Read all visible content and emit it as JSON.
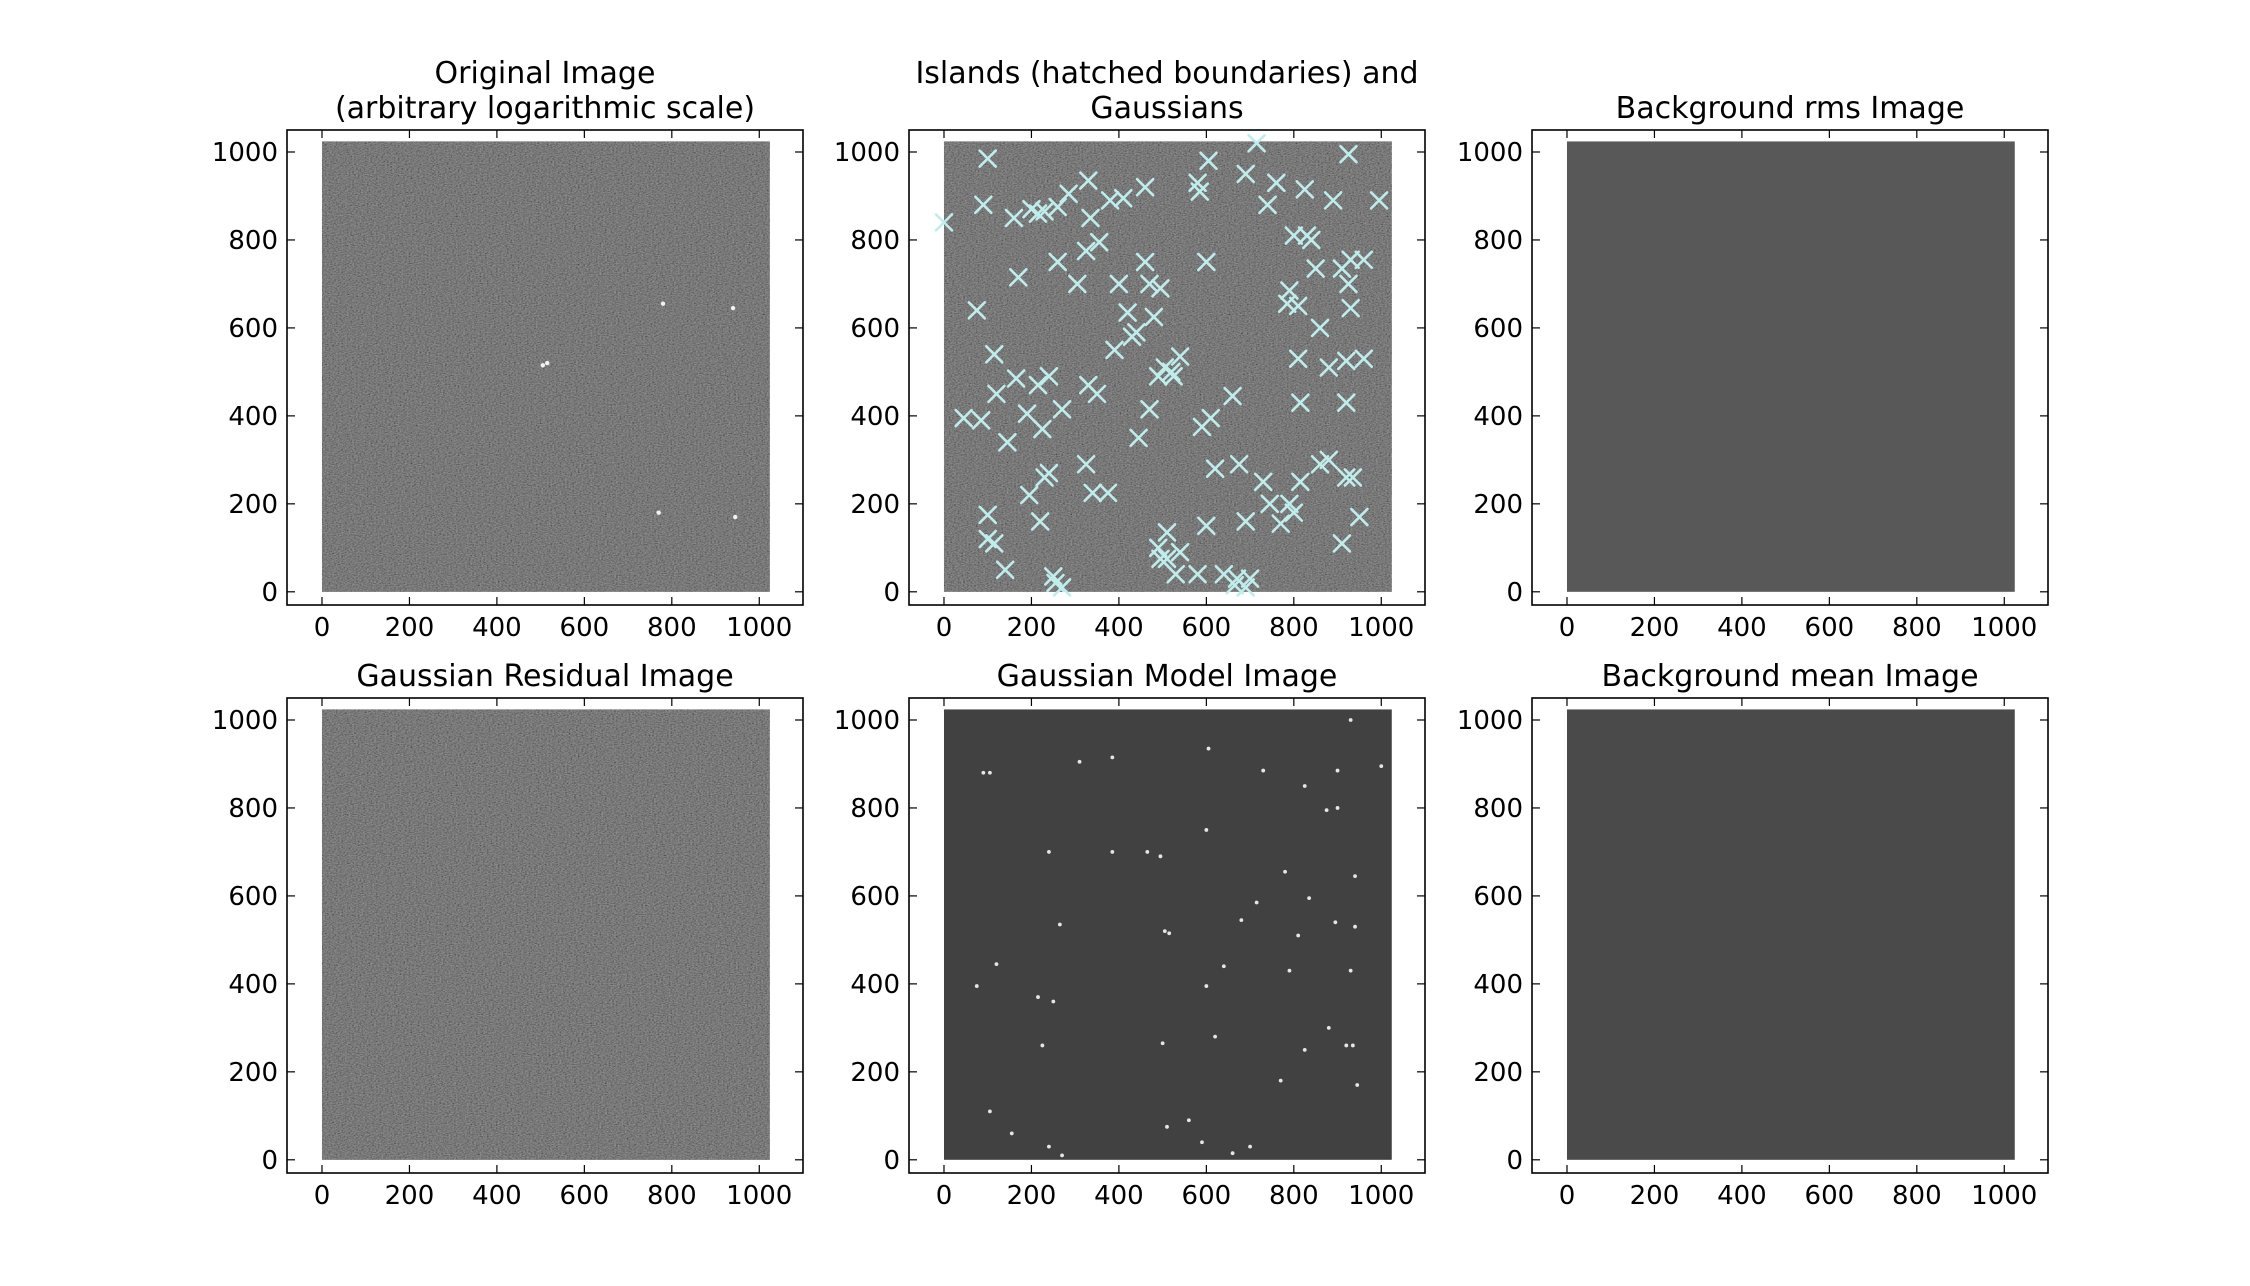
{
  "figure": {
    "panels": [
      {
        "id": "original",
        "title_lines": [
          "Original Image",
          "(arbitrary logarithmic scale)"
        ],
        "image_kind": "noise",
        "fill": "#4a4a4a"
      },
      {
        "id": "islands",
        "title_lines": [
          "Islands (hatched boundaries) and",
          "Gaussians"
        ],
        "image_kind": "noise",
        "fill": "#4a4a4a"
      },
      {
        "id": "background-rms",
        "title_lines": [
          "Background rms Image"
        ],
        "image_kind": "flat",
        "fill": "#585858"
      },
      {
        "id": "gaussian-residual",
        "title_lines": [
          "Gaussian Residual Image"
        ],
        "image_kind": "noise",
        "fill": "#4a4a4a"
      },
      {
        "id": "gaussian-model",
        "title_lines": [
          "Gaussian Model Image"
        ],
        "image_kind": "flat",
        "fill": "#414141"
      },
      {
        "id": "background-mean",
        "title_lines": [
          "Background mean Image"
        ],
        "image_kind": "flat",
        "fill": "#4a4a4a"
      }
    ]
  },
  "chart_data": [
    {
      "type": "heatmap",
      "title": "Original Image\n(arbitrary logarithmic scale)",
      "xlim": [
        -80,
        1100
      ],
      "ylim": [
        -30,
        1050
      ],
      "xticks": [
        "0",
        "200",
        "400",
        "600",
        "800",
        "1000"
      ],
      "yticks": [
        "0",
        "200",
        "400",
        "600",
        "800",
        "1000"
      ],
      "image_extent": [
        0,
        1024
      ],
      "colormap": "gray",
      "bright_sources": [
        [
          780,
          655
        ],
        [
          940,
          645
        ],
        [
          515,
          520
        ],
        [
          770,
          180
        ],
        [
          505,
          515
        ],
        [
          945,
          170
        ]
      ]
    },
    {
      "type": "scatter",
      "title": "Islands (hatched boundaries) and\nGaussians",
      "xlim": [
        -80,
        1100
      ],
      "ylim": [
        -30,
        1050
      ],
      "xticks": [
        "0",
        "200",
        "400",
        "600",
        "800",
        "1000"
      ],
      "yticks": [
        "0",
        "200",
        "400",
        "600",
        "800",
        "1000"
      ],
      "image_extent": [
        0,
        1024
      ],
      "marker": "x",
      "marker_color": "#c0ecec",
      "points": [
        [
          0,
          840
        ],
        [
          100,
          985
        ],
        [
          90,
          880
        ],
        [
          160,
          850
        ],
        [
          200,
          870
        ],
        [
          215,
          860
        ],
        [
          230,
          865
        ],
        [
          260,
          875
        ],
        [
          285,
          905
        ],
        [
          330,
          935
        ],
        [
          335,
          850
        ],
        [
          355,
          795
        ],
        [
          380,
          890
        ],
        [
          410,
          895
        ],
        [
          460,
          920
        ],
        [
          580,
          930
        ],
        [
          585,
          910
        ],
        [
          605,
          980
        ],
        [
          715,
          1020
        ],
        [
          690,
          950
        ],
        [
          740,
          880
        ],
        [
          760,
          930
        ],
        [
          825,
          915
        ],
        [
          890,
          890
        ],
        [
          925,
          995
        ],
        [
          995,
          890
        ],
        [
          75,
          640
        ],
        [
          170,
          715
        ],
        [
          260,
          750
        ],
        [
          305,
          700
        ],
        [
          325,
          775
        ],
        [
          400,
          700
        ],
        [
          420,
          635
        ],
        [
          440,
          590
        ],
        [
          460,
          750
        ],
        [
          470,
          700
        ],
        [
          495,
          690
        ],
        [
          480,
          625
        ],
        [
          600,
          750
        ],
        [
          790,
          685
        ],
        [
          785,
          655
        ],
        [
          810,
          650
        ],
        [
          800,
          810
        ],
        [
          830,
          810
        ],
        [
          840,
          800
        ],
        [
          850,
          735
        ],
        [
          910,
          735
        ],
        [
          930,
          755
        ],
        [
          925,
          700
        ],
        [
          930,
          645
        ],
        [
          960,
          755
        ],
        [
          960,
          530
        ],
        [
          860,
          600
        ],
        [
          810,
          530
        ],
        [
          880,
          510
        ],
        [
          920,
          525
        ],
        [
          115,
          540
        ],
        [
          120,
          450
        ],
        [
          165,
          485
        ],
        [
          215,
          470
        ],
        [
          190,
          405
        ],
        [
          240,
          490
        ],
        [
          270,
          415
        ],
        [
          330,
          470
        ],
        [
          350,
          450
        ],
        [
          390,
          550
        ],
        [
          445,
          350
        ],
        [
          430,
          580
        ],
        [
          470,
          415
        ],
        [
          490,
          490
        ],
        [
          505,
          510
        ],
        [
          520,
          500
        ],
        [
          525,
          490
        ],
        [
          540,
          535
        ],
        [
          590,
          375
        ],
        [
          610,
          395
        ],
        [
          660,
          445
        ],
        [
          815,
          430
        ],
        [
          880,
          300
        ],
        [
          920,
          430
        ],
        [
          45,
          395
        ],
        [
          85,
          390
        ],
        [
          145,
          340
        ],
        [
          225,
          370
        ],
        [
          230,
          260
        ],
        [
          240,
          270
        ],
        [
          195,
          220
        ],
        [
          220,
          160
        ],
        [
          325,
          290
        ],
        [
          340,
          225
        ],
        [
          375,
          225
        ],
        [
          540,
          90
        ],
        [
          495,
          75
        ],
        [
          490,
          100
        ],
        [
          510,
          135
        ],
        [
          580,
          40
        ],
        [
          600,
          150
        ],
        [
          620,
          280
        ],
        [
          675,
          290
        ],
        [
          690,
          160
        ],
        [
          730,
          250
        ],
        [
          745,
          200
        ],
        [
          770,
          155
        ],
        [
          790,
          200
        ],
        [
          800,
          180
        ],
        [
          815,
          250
        ],
        [
          860,
          290
        ],
        [
          910,
          110
        ],
        [
          950,
          170
        ],
        [
          920,
          260
        ],
        [
          935,
          260
        ],
        [
          100,
          175
        ],
        [
          100,
          120
        ],
        [
          115,
          110
        ],
        [
          140,
          50
        ],
        [
          250,
          35
        ],
        [
          255,
          20
        ],
        [
          270,
          10
        ],
        [
          510,
          75
        ],
        [
          530,
          40
        ],
        [
          640,
          40
        ],
        [
          665,
          15
        ],
        [
          670,
          30
        ],
        [
          690,
          10
        ],
        [
          700,
          30
        ]
      ]
    },
    {
      "type": "heatmap",
      "title": "Background rms Image",
      "xlim": [
        -80,
        1100
      ],
      "ylim": [
        -30,
        1050
      ],
      "xticks": [
        "0",
        "200",
        "400",
        "600",
        "800",
        "1000"
      ],
      "yticks": [
        "0",
        "200",
        "400",
        "600",
        "800",
        "1000"
      ],
      "image_extent": [
        0,
        1024
      ],
      "colormap": "gray"
    },
    {
      "type": "heatmap",
      "title": "Gaussian Residual Image",
      "xlim": [
        -80,
        1100
      ],
      "ylim": [
        -30,
        1050
      ],
      "xticks": [
        "0",
        "200",
        "400",
        "600",
        "800",
        "1000"
      ],
      "yticks": [
        "0",
        "200",
        "400",
        "600",
        "800",
        "1000"
      ],
      "image_extent": [
        0,
        1024
      ],
      "colormap": "gray"
    },
    {
      "type": "heatmap",
      "title": "Gaussian Model Image",
      "xlim": [
        -80,
        1100
      ],
      "ylim": [
        -30,
        1050
      ],
      "xticks": [
        "0",
        "200",
        "400",
        "600",
        "800",
        "1000"
      ],
      "yticks": [
        "0",
        "200",
        "400",
        "600",
        "800",
        "1000"
      ],
      "image_extent": [
        0,
        1024
      ],
      "colormap": "gray",
      "sources": [
        [
          780,
          655
        ],
        [
          940,
          645
        ],
        [
          505,
          520
        ],
        [
          515,
          515
        ],
        [
          770,
          180
        ],
        [
          945,
          170
        ],
        [
          385,
          700
        ],
        [
          930,
          1000
        ],
        [
          900,
          885
        ],
        [
          605,
          935
        ],
        [
          310,
          905
        ],
        [
          385,
          915
        ],
        [
          825,
          850
        ],
        [
          105,
          880
        ],
        [
          730,
          885
        ],
        [
          90,
          880
        ],
        [
          600,
          750
        ],
        [
          875,
          795
        ],
        [
          900,
          800
        ],
        [
          1000,
          895
        ],
        [
          835,
          595
        ],
        [
          265,
          535
        ],
        [
          500,
          265
        ],
        [
          240,
          700
        ],
        [
          680,
          545
        ],
        [
          120,
          445
        ],
        [
          215,
          370
        ],
        [
          225,
          260
        ],
        [
          250,
          360
        ],
        [
          75,
          395
        ],
        [
          620,
          280
        ],
        [
          715,
          585
        ],
        [
          940,
          530
        ],
        [
          895,
          540
        ],
        [
          810,
          510
        ],
        [
          790,
          430
        ],
        [
          880,
          300
        ],
        [
          920,
          260
        ],
        [
          935,
          260
        ],
        [
          240,
          30
        ],
        [
          270,
          10
        ],
        [
          660,
          15
        ],
        [
          700,
          30
        ],
        [
          560,
          90
        ],
        [
          590,
          40
        ],
        [
          510,
          75
        ],
        [
          105,
          110
        ],
        [
          155,
          60
        ],
        [
          465,
          700
        ],
        [
          495,
          690
        ],
        [
          825,
          250
        ],
        [
          930,
          430
        ],
        [
          600,
          395
        ],
        [
          640,
          440
        ]
      ]
    },
    {
      "type": "heatmap",
      "title": "Background mean Image",
      "xlim": [
        -80,
        1100
      ],
      "ylim": [
        -30,
        1050
      ],
      "xticks": [
        "0",
        "200",
        "400",
        "600",
        "800",
        "1000"
      ],
      "yticks": [
        "0",
        "200",
        "400",
        "600",
        "800",
        "1000"
      ],
      "image_extent": [
        0,
        1024
      ],
      "colormap": "gray"
    }
  ]
}
